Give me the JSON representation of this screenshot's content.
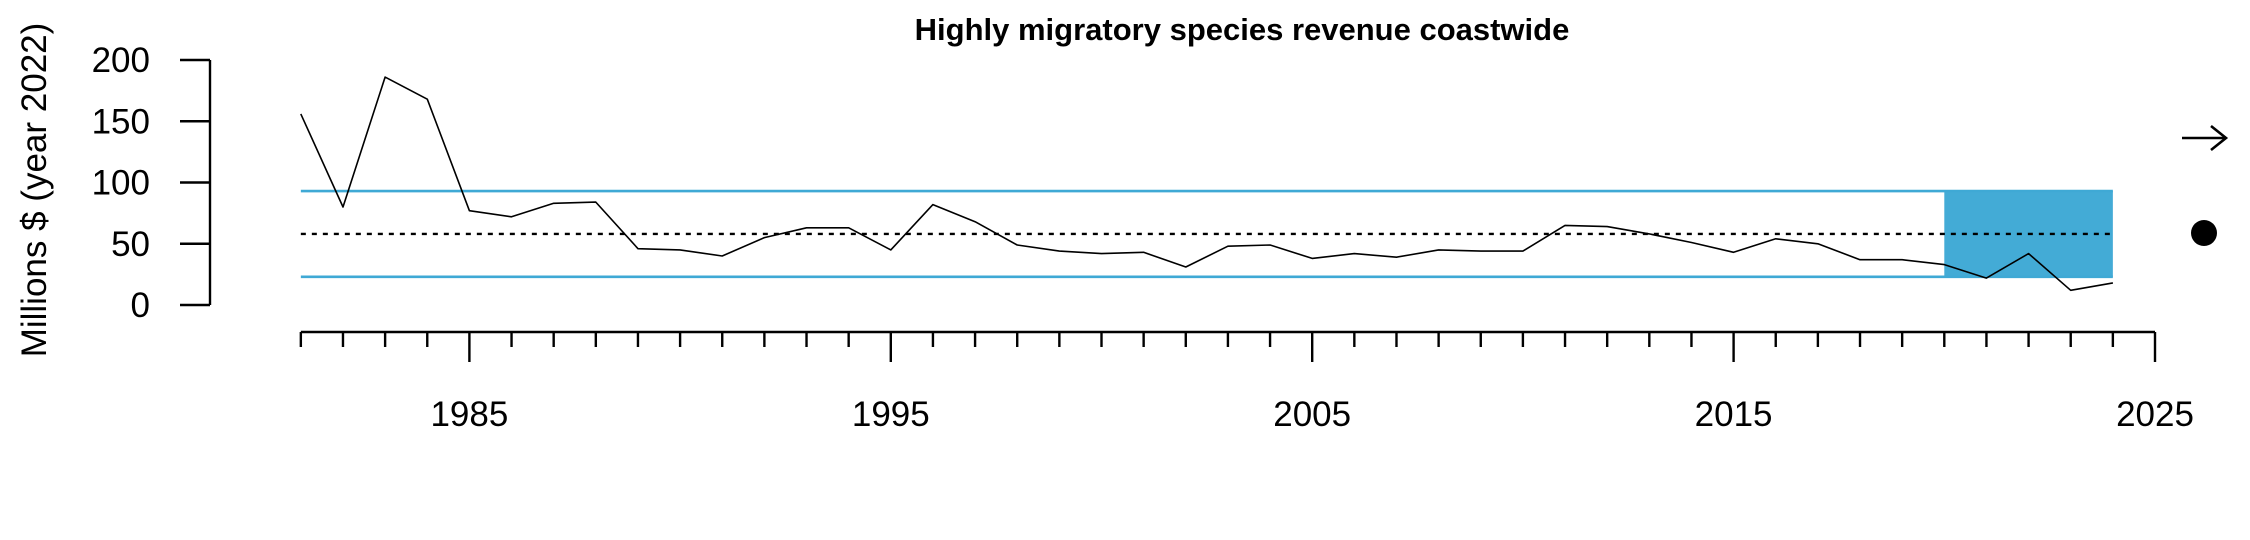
{
  "chart_data": {
    "type": "line",
    "title": "Highly migratory species revenue coastwide",
    "xlabel": "",
    "ylabel": "Millions $ (year 2022)",
    "xlim": [
      1981,
      2025
    ],
    "ylim": [
      0,
      200
    ],
    "x_ticks": [
      "1985",
      "1995",
      "2005",
      "2015",
      "2025"
    ],
    "y_ticks": [
      "0",
      "50",
      "100",
      "150",
      "200"
    ],
    "grid": false,
    "series": [
      {
        "x": [
          1981,
          1982,
          1983,
          1984,
          1985,
          1986,
          1987,
          1988,
          1989,
          1990,
          1991,
          1992,
          1993,
          1994,
          1995,
          1996,
          1997,
          1998,
          1999,
          2000,
          2001,
          2002,
          2003,
          2004,
          2005,
          2006,
          2007,
          2008,
          2009,
          2010,
          2011,
          2012,
          2013,
          2014,
          2015,
          2016,
          2017,
          2018,
          2019,
          2020,
          2021,
          2022,
          2023,
          2024
        ],
        "values": [
          156,
          80,
          186,
          168,
          77,
          72,
          83,
          84,
          46,
          45,
          40,
          55,
          63,
          63,
          45,
          82,
          68,
          49,
          44,
          42,
          43,
          31,
          48,
          49,
          38,
          42,
          39,
          45,
          44,
          44,
          65,
          64,
          58,
          51,
          43,
          54,
          50,
          37,
          37,
          33,
          22,
          42,
          12,
          18
        ]
      }
    ],
    "reference_lines": {
      "mean": 58,
      "upper_sd": 93,
      "lower_sd": 23
    },
    "highlight_window": {
      "x_start": 2020,
      "x_end": 2024
    },
    "colors": {
      "series": "#000000",
      "sd_lines": "#3fa9d5",
      "highlight": "#43abd6"
    },
    "indicators": {
      "trend": "arrow-right-icon",
      "mean_status": "filled-circle-icon"
    }
  }
}
